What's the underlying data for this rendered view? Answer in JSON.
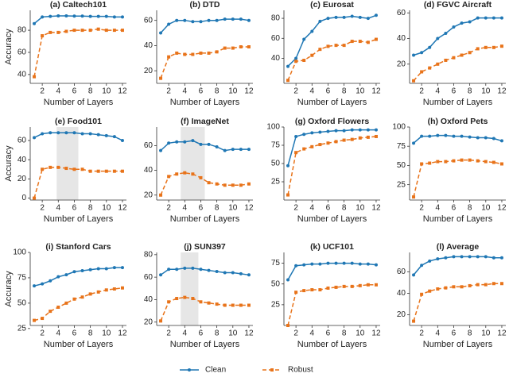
{
  "chart_data": [
    {
      "type": "line",
      "title": "(a) Caltech101",
      "xlabel": "Number of Layers",
      "ylabel": "Accuracy",
      "x": [
        1,
        2,
        3,
        4,
        5,
        6,
        7,
        8,
        9,
        10,
        11,
        12
      ],
      "xlim": [
        0.5,
        12.5
      ],
      "xticks": [
        2,
        4,
        6,
        8,
        10,
        12
      ],
      "ylim": [
        32,
        98
      ],
      "yticks": [
        40,
        60,
        80
      ],
      "series": [
        {
          "name": "Clean",
          "color": "#1f77b4",
          "marker": "circle",
          "linestyle": "solid",
          "values": [
            86,
            92,
            92.5,
            93,
            93,
            92.8,
            92.8,
            92.5,
            92.5,
            92.5,
            92,
            92
          ]
        },
        {
          "name": "Robust",
          "color": "#e8731a",
          "marker": "square",
          "linestyle": "dashed",
          "values": [
            38,
            75,
            78,
            78,
            79,
            80,
            80,
            80,
            81,
            80,
            80,
            80
          ]
        }
      ]
    },
    {
      "type": "line",
      "title": "(b) DTD",
      "xlabel": "Number of Layers",
      "x": [
        1,
        2,
        3,
        4,
        5,
        6,
        7,
        8,
        9,
        10,
        11,
        12
      ],
      "xlim": [
        0.5,
        12.5
      ],
      "xticks": [
        2,
        4,
        6,
        8,
        10,
        12
      ],
      "ylim": [
        10,
        68
      ],
      "yticks": [
        20,
        40,
        60
      ],
      "series": [
        {
          "name": "Clean",
          "color": "#1f77b4",
          "marker": "circle",
          "linestyle": "solid",
          "values": [
            50,
            57,
            60,
            60,
            59,
            59,
            60,
            60,
            61,
            61,
            61,
            60
          ]
        },
        {
          "name": "Robust",
          "color": "#e8731a",
          "marker": "square",
          "linestyle": "dashed",
          "values": [
            14,
            31,
            34,
            33,
            33,
            34,
            34,
            35,
            38,
            38,
            39,
            39
          ]
        }
      ]
    },
    {
      "type": "line",
      "title": "(c) Eurosat",
      "xlabel": "Number of Layers",
      "x": [
        1,
        2,
        3,
        4,
        5,
        6,
        7,
        8,
        9,
        10,
        11,
        12
      ],
      "xlim": [
        0.5,
        12.5
      ],
      "xticks": [
        2,
        4,
        6,
        8,
        10,
        12
      ],
      "ylim": [
        15,
        88
      ],
      "yticks": [
        40,
        60,
        80
      ],
      "series": [
        {
          "name": "Clean",
          "color": "#1f77b4",
          "marker": "circle",
          "linestyle": "solid",
          "values": [
            32,
            40,
            59,
            67,
            77,
            80,
            81,
            81,
            82,
            81,
            80,
            83
          ]
        },
        {
          "name": "Robust",
          "color": "#e8731a",
          "marker": "square",
          "linestyle": "dashed",
          "values": [
            18,
            37,
            38,
            43,
            49,
            52,
            53,
            53,
            57,
            57,
            56,
            59
          ]
        }
      ]
    },
    {
      "type": "line",
      "title": "(d) FGVC Aircraft",
      "xlabel": "Number of Layers",
      "x": [
        1,
        2,
        3,
        4,
        5,
        6,
        7,
        8,
        9,
        10,
        11,
        12
      ],
      "xlim": [
        0.5,
        12.5
      ],
      "xticks": [
        2,
        4,
        6,
        8,
        10,
        12
      ],
      "ylim": [
        5,
        62
      ],
      "yticks": [
        20,
        40,
        60
      ],
      "series": [
        {
          "name": "Clean",
          "color": "#1f77b4",
          "marker": "circle",
          "linestyle": "solid",
          "values": [
            27,
            29,
            33,
            40,
            44,
            49,
            52,
            53,
            56,
            56,
            56,
            56
          ]
        },
        {
          "name": "Robust",
          "color": "#e8731a",
          "marker": "square",
          "linestyle": "dashed",
          "values": [
            7,
            14,
            17,
            20,
            23,
            25,
            27,
            29,
            32,
            33,
            33,
            34
          ]
        }
      ]
    },
    {
      "type": "line",
      "title": "(e) Food101",
      "xlabel": "Number of Layers",
      "ylabel": "Accuracy",
      "x": [
        1,
        2,
        3,
        4,
        5,
        6,
        7,
        8,
        9,
        10,
        11,
        12
      ],
      "xlim": [
        0.5,
        12.5
      ],
      "xticks": [
        2,
        4,
        6,
        8,
        10,
        12
      ],
      "ylim": [
        -2,
        74
      ],
      "yticks": [
        0,
        20,
        40,
        60
      ],
      "shade": [
        3.8,
        6.5
      ],
      "series": [
        {
          "name": "Clean",
          "color": "#1f77b4",
          "marker": "circle",
          "linestyle": "solid",
          "values": [
            63,
            67,
            68,
            68,
            68,
            68,
            67,
            67,
            66,
            65,
            64,
            60
          ]
        },
        {
          "name": "Robust",
          "color": "#e8731a",
          "marker": "square",
          "linestyle": "dashed",
          "values": [
            0,
            30,
            32,
            32,
            31,
            30,
            30,
            28,
            28,
            28,
            28,
            28
          ]
        }
      ]
    },
    {
      "type": "line",
      "title": "(f) ImageNet",
      "xlabel": "Number of Layers",
      "x": [
        1,
        2,
        3,
        4,
        5,
        6,
        7,
        8,
        9,
        10,
        11,
        12
      ],
      "xlim": [
        0.5,
        12.5
      ],
      "xticks": [
        2,
        4,
        6,
        8,
        10,
        12
      ],
      "ylim": [
        16,
        75
      ],
      "yticks": [
        20,
        40,
        60
      ],
      "shade": [
        3.5,
        6.5
      ],
      "series": [
        {
          "name": "Clean",
          "color": "#1f77b4",
          "marker": "circle",
          "linestyle": "solid",
          "values": [
            56,
            62,
            63,
            63,
            64,
            61,
            61,
            59,
            56,
            57,
            57,
            57
          ]
        },
        {
          "name": "Robust",
          "color": "#e8731a",
          "marker": "square",
          "linestyle": "dashed",
          "values": [
            20,
            35,
            37,
            38,
            37,
            34,
            30,
            29,
            28,
            28,
            28,
            29
          ]
        }
      ]
    },
    {
      "type": "line",
      "title": "(g) Oxford Flowers",
      "xlabel": "Number of Layers",
      "x": [
        1,
        2,
        3,
        4,
        5,
        6,
        7,
        8,
        9,
        10,
        11,
        12
      ],
      "xlim": [
        0.5,
        12.5
      ],
      "xticks": [
        2,
        4,
        6,
        8,
        10,
        12
      ],
      "ylim": [
        0,
        100
      ],
      "yticks": [
        25,
        50,
        75,
        100
      ],
      "series": [
        {
          "name": "Clean",
          "color": "#1f77b4",
          "marker": "circle",
          "linestyle": "solid",
          "values": [
            47,
            87,
            90,
            92,
            93,
            94,
            95,
            95,
            96,
            96,
            96,
            96
          ]
        },
        {
          "name": "Robust",
          "color": "#e8731a",
          "marker": "square",
          "linestyle": "dashed",
          "values": [
            7,
            65,
            70,
            73,
            76,
            78,
            80,
            82,
            83,
            85,
            86,
            87
          ]
        }
      ]
    },
    {
      "type": "line",
      "title": "(h) Oxford Pets",
      "xlabel": "Number of Layers",
      "x": [
        1,
        2,
        3,
        4,
        5,
        6,
        7,
        8,
        9,
        10,
        11,
        12
      ],
      "xlim": [
        0.5,
        12.5
      ],
      "xticks": [
        2,
        4,
        6,
        8,
        10,
        12
      ],
      "ylim": [
        5,
        100
      ],
      "yticks": [
        25,
        50,
        75,
        100
      ],
      "series": [
        {
          "name": "Clean",
          "color": "#1f77b4",
          "marker": "circle",
          "linestyle": "solid",
          "values": [
            79,
            88,
            88,
            89,
            89,
            88,
            88,
            87,
            86,
            86,
            85,
            82
          ]
        },
        {
          "name": "Robust",
          "color": "#e8731a",
          "marker": "square",
          "linestyle": "dashed",
          "values": [
            9,
            52,
            53,
            55,
            55,
            56,
            57,
            57,
            56,
            55,
            54,
            52
          ]
        }
      ]
    },
    {
      "type": "line",
      "title": "(i) Stanford Cars",
      "xlabel": "Number of Layers",
      "ylabel": "Accuracy",
      "x": [
        1,
        2,
        3,
        4,
        5,
        6,
        7,
        8,
        9,
        10,
        11,
        12
      ],
      "xlim": [
        0.5,
        12.5
      ],
      "xticks": [
        2,
        4,
        6,
        8,
        10,
        12
      ],
      "ylim": [
        28,
        100
      ],
      "yticks": [
        25,
        50,
        75,
        100
      ],
      "series": [
        {
          "name": "Clean",
          "color": "#1f77b4",
          "marker": "circle",
          "linestyle": "solid",
          "values": [
            67,
            69,
            72,
            76,
            78,
            81,
            82,
            83,
            84,
            84,
            85,
            85
          ]
        },
        {
          "name": "Robust",
          "color": "#e8731a",
          "marker": "square",
          "linestyle": "dashed",
          "values": [
            33,
            35,
            42,
            46,
            50,
            54,
            56,
            59,
            61,
            63,
            64,
            65
          ]
        }
      ]
    },
    {
      "type": "line",
      "title": "(j) SUN397",
      "xlabel": "Number of Layers",
      "x": [
        1,
        2,
        3,
        4,
        5,
        6,
        7,
        8,
        9,
        10,
        11,
        12
      ],
      "xlim": [
        0.5,
        12.5
      ],
      "xticks": [
        2,
        4,
        6,
        8,
        10,
        12
      ],
      "ylim": [
        17,
        82
      ],
      "yticks": [
        20,
        40,
        60,
        80
      ],
      "shade": [
        3.5,
        5.7
      ],
      "series": [
        {
          "name": "Clean",
          "color": "#1f77b4",
          "marker": "circle",
          "linestyle": "solid",
          "values": [
            62,
            67,
            67,
            68,
            68,
            67,
            66,
            65,
            64,
            64,
            63,
            62
          ]
        },
        {
          "name": "Robust",
          "color": "#e8731a",
          "marker": "square",
          "linestyle": "dashed",
          "values": [
            21,
            38,
            41,
            42,
            41,
            38,
            37,
            36,
            35,
            35,
            35,
            35
          ]
        }
      ]
    },
    {
      "type": "line",
      "title": "(k) UCF101",
      "xlabel": "Number of Layers",
      "x": [
        1,
        2,
        3,
        4,
        5,
        6,
        7,
        8,
        9,
        10,
        11,
        12
      ],
      "xlim": [
        0.5,
        12.5
      ],
      "xticks": [
        2,
        4,
        6,
        8,
        10,
        12
      ],
      "ylim": [
        0,
        88
      ],
      "yticks": [
        25,
        50,
        75
      ],
      "series": [
        {
          "name": "Clean",
          "color": "#1f77b4",
          "marker": "circle",
          "linestyle": "solid",
          "values": [
            55,
            72,
            73,
            74,
            74,
            75,
            75,
            75,
            75,
            74,
            74,
            73
          ]
        },
        {
          "name": "Robust",
          "color": "#e8731a",
          "marker": "square",
          "linestyle": "dashed",
          "values": [
            0,
            40,
            42,
            43,
            43,
            45,
            46,
            47,
            47,
            48,
            49,
            49
          ]
        }
      ]
    },
    {
      "type": "line",
      "title": "(l) Average",
      "xlabel": "Number of Layers",
      "x": [
        1,
        2,
        3,
        4,
        5,
        6,
        7,
        8,
        9,
        10,
        11,
        12
      ],
      "xlim": [
        0.5,
        12.5
      ],
      "xticks": [
        2,
        4,
        6,
        8,
        10,
        12
      ],
      "ylim": [
        10,
        78
      ],
      "yticks": [
        20,
        40,
        60
      ],
      "series": [
        {
          "name": "Clean",
          "color": "#1f77b4",
          "marker": "circle",
          "linestyle": "solid",
          "values": [
            57,
            66,
            70,
            72,
            73,
            74,
            74,
            74,
            74,
            74,
            73,
            73
          ]
        },
        {
          "name": "Robust",
          "color": "#e8731a",
          "marker": "square",
          "linestyle": "dashed",
          "values": [
            14,
            39,
            42,
            44,
            45,
            46,
            46,
            47,
            48,
            48,
            49,
            49
          ]
        }
      ]
    }
  ]
}
